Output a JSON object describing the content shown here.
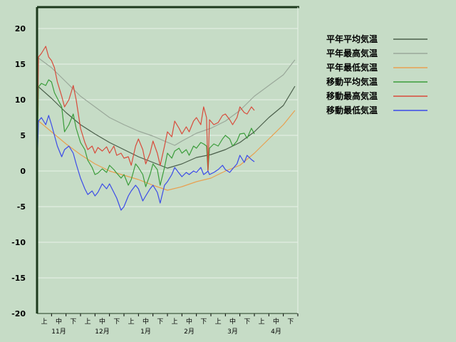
{
  "chart_data": {
    "type": "line",
    "title": "",
    "xlabel": "",
    "ylabel": "",
    "ylim": [
      -20,
      23
    ],
    "yticks": [
      20,
      15,
      10,
      5,
      0,
      -5,
      -10,
      -15,
      -20
    ],
    "grid": true,
    "legend_position": "right",
    "x_range_days": [
      0,
      180
    ],
    "x_subtick_labels": [
      "上",
      "中",
      "下",
      "上",
      "中",
      "下",
      "上",
      "中",
      "下",
      "上",
      "中",
      "下",
      "上",
      "中",
      "下",
      "上",
      "中",
      "下"
    ],
    "x_month_labels": [
      "11月",
      "12月",
      "1月",
      "2月",
      "3月",
      "4月"
    ],
    "series": [
      {
        "name": "平年平均気温",
        "color": "#4a5e4a",
        "x": [
          0,
          10,
          20,
          30,
          40,
          50,
          60,
          70,
          80,
          85,
          90,
          100,
          110,
          120,
          130,
          140,
          150,
          160,
          170,
          178
        ],
        "y": [
          12,
          10.2,
          8.2,
          6.5,
          5.2,
          4,
          3,
          2,
          1.2,
          0.8,
          0.4,
          1,
          1.9,
          2.3,
          3,
          4,
          5.5,
          7.5,
          9.2,
          11.9
        ]
      },
      {
        "name": "平年最高気温",
        "color": "#9aa89a",
        "x": [
          0,
          10,
          20,
          30,
          40,
          50,
          60,
          70,
          80,
          88,
          95,
          100,
          110,
          120,
          130,
          140,
          150,
          160,
          170,
          178
        ],
        "y": [
          16,
          14.5,
          12.5,
          10.5,
          9,
          7.5,
          6.5,
          5.6,
          4.9,
          4.2,
          3.6,
          4.2,
          5.3,
          6,
          7,
          8.5,
          10.5,
          12,
          13.5,
          15.6
        ]
      },
      {
        "name": "平年最低気温",
        "color": "#e8a050",
        "x": [
          0,
          10,
          20,
          30,
          40,
          50,
          60,
          70,
          80,
          90,
          100,
          110,
          120,
          130,
          140,
          150,
          160,
          170,
          178
        ],
        "y": [
          7.2,
          5.5,
          3.8,
          2.3,
          1,
          0,
          -0.6,
          -1.2,
          -2,
          -2.7,
          -2.2,
          -1.5,
          -1,
          0,
          0.8,
          2.5,
          4.5,
          6.5,
          8.5
        ]
      },
      {
        "name": "移動平均気温",
        "color": "#3a9c3a",
        "x": [
          0,
          1,
          3,
          6,
          8,
          10,
          12,
          14,
          17,
          19,
          22,
          25,
          27,
          30,
          33,
          35,
          38,
          40,
          42,
          45,
          48,
          50,
          53,
          55,
          58,
          60,
          63,
          65,
          68,
          70,
          73,
          75,
          78,
          80,
          83,
          85,
          88,
          90,
          93,
          95,
          98,
          100,
          103,
          105,
          108,
          110,
          113,
          115,
          117,
          118,
          119,
          122,
          125,
          128,
          130,
          133,
          135,
          138,
          140,
          143,
          145,
          148,
          150
        ],
        "y": [
          0,
          11.8,
          12.3,
          12,
          12.8,
          12.5,
          11,
          10.2,
          9,
          5.5,
          6.5,
          8,
          6,
          4,
          3,
          1.5,
          0.5,
          -0.5,
          -0.3,
          0.3,
          -0.2,
          0.8,
          0.2,
          -0.3,
          -1,
          -0.5,
          -2,
          -1.2,
          1,
          0.5,
          -0.5,
          -2.2,
          -0.5,
          1,
          0.2,
          -2,
          0.5,
          2.5,
          1.8,
          2.8,
          3.2,
          2.5,
          3,
          2.2,
          3.5,
          3.2,
          4,
          3.8,
          3.5,
          0,
          3.2,
          3.8,
          3.5,
          4.5,
          5,
          4.5,
          3.5,
          4.2,
          5.2,
          5.3,
          4.6,
          6,
          5.2
        ]
      },
      {
        "name": "移動最高気温",
        "color": "#d84a3a",
        "x": [
          0,
          1,
          3,
          6,
          8,
          10,
          12,
          14,
          17,
          19,
          22,
          25,
          27,
          30,
          33,
          35,
          38,
          40,
          42,
          45,
          48,
          50,
          53,
          55,
          58,
          60,
          63,
          65,
          68,
          70,
          73,
          75,
          78,
          80,
          83,
          85,
          88,
          90,
          93,
          95,
          98,
          100,
          103,
          105,
          108,
          110,
          113,
          115,
          117,
          118,
          119,
          122,
          125,
          128,
          130,
          133,
          135,
          138,
          140,
          143,
          145,
          148,
          150
        ],
        "y": [
          0,
          16,
          16.5,
          17.5,
          16,
          15.5,
          14.5,
          12.5,
          10.5,
          9,
          10,
          12,
          10,
          6,
          4,
          3,
          3.5,
          2.5,
          3.3,
          2.8,
          3.4,
          2.5,
          3.5,
          2.2,
          2.5,
          1.8,
          2,
          0.8,
          3.5,
          4.5,
          3,
          1,
          2.5,
          4.2,
          2.5,
          0.8,
          3.5,
          5.5,
          4.8,
          7,
          6,
          5.2,
          6.2,
          5.5,
          7,
          7.5,
          6.5,
          9,
          7.5,
          0,
          7.2,
          6.5,
          6.8,
          7.8,
          8,
          7.2,
          6.5,
          7.5,
          9,
          8.2,
          8,
          9,
          8.5
        ]
      },
      {
        "name": "移動最低気温",
        "color": "#3a4ae8",
        "x": [
          0,
          1,
          3,
          6,
          8,
          10,
          12,
          14,
          17,
          19,
          22,
          25,
          27,
          30,
          33,
          35,
          38,
          40,
          42,
          45,
          48,
          50,
          53,
          55,
          58,
          60,
          63,
          65,
          68,
          70,
          73,
          75,
          78,
          80,
          83,
          85,
          88,
          90,
          93,
          95,
          98,
          100,
          103,
          105,
          108,
          110,
          113,
          115,
          117,
          118,
          119,
          122,
          125,
          128,
          130,
          133,
          135,
          138,
          140,
          143,
          145,
          148,
          150
        ],
        "y": [
          0,
          7,
          7.5,
          6.5,
          7.8,
          6.5,
          5,
          3.5,
          2,
          3,
          3.5,
          2.5,
          1,
          -1,
          -2.5,
          -3.3,
          -2.8,
          -3.5,
          -3,
          -1.8,
          -2.5,
          -1.8,
          -3,
          -3.8,
          -5.5,
          -5,
          -3.5,
          -2.8,
          -2,
          -2.5,
          -4.2,
          -3.5,
          -2.5,
          -2,
          -3,
          -4.5,
          -2,
          -1.5,
          -0.5,
          0.5,
          -0.3,
          -0.8,
          -0.2,
          -0.5,
          0,
          -0.2,
          0.5,
          -0.5,
          -0.2,
          0,
          -0.5,
          -0.2,
          0.2,
          0.8,
          0.2,
          -0.2,
          0.3,
          1,
          2.2,
          1.2,
          2.2,
          1.6,
          1.3
        ]
      }
    ]
  }
}
